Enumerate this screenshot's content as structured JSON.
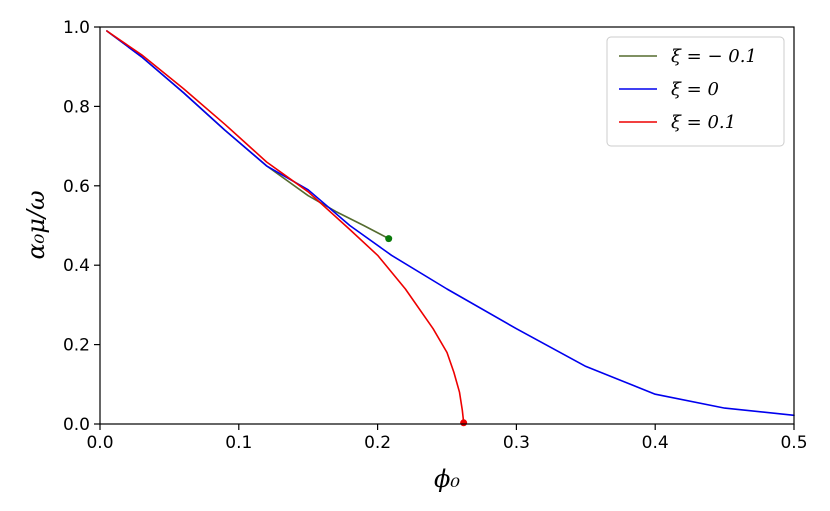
{
  "chart_data": {
    "type": "line",
    "xlabel": "ϕ₀",
    "ylabel": "α₀μ/ω",
    "xlim": [
      0.0,
      0.5
    ],
    "ylim": [
      0.0,
      1.0
    ],
    "x_ticks": [
      "0.0",
      "0.1",
      "0.2",
      "0.3",
      "0.4",
      "0.5"
    ],
    "y_ticks": [
      "0.0",
      "0.2",
      "0.4",
      "0.6",
      "0.8",
      "1.0"
    ],
    "grid": false,
    "legend_position": "top-right",
    "series": [
      {
        "name": "ξ = − 0.1",
        "color": "#556b2f",
        "endpoint_color": "#0a7a0a",
        "x": [
          0.005,
          0.03,
          0.06,
          0.09,
          0.12,
          0.15,
          0.17,
          0.19,
          0.208
        ],
        "y": [
          0.99,
          0.925,
          0.835,
          0.74,
          0.65,
          0.575,
          0.535,
          0.5,
          0.467
        ],
        "endpoint": [
          0.208,
          0.467
        ]
      },
      {
        "name": "ξ = 0",
        "color": "#0000ee",
        "x": [
          0.005,
          0.03,
          0.06,
          0.09,
          0.12,
          0.15,
          0.18,
          0.21,
          0.25,
          0.3,
          0.35,
          0.4,
          0.45,
          0.5
        ],
        "y": [
          0.99,
          0.925,
          0.835,
          0.74,
          0.65,
          0.59,
          0.5,
          0.425,
          0.34,
          0.24,
          0.145,
          0.075,
          0.04,
          0.022
        ]
      },
      {
        "name": "ξ = 0.1",
        "color": "#ee0000",
        "endpoint_color": "#ee0000",
        "x": [
          0.005,
          0.03,
          0.06,
          0.09,
          0.12,
          0.15,
          0.18,
          0.2,
          0.22,
          0.24,
          0.25,
          0.255,
          0.259,
          0.261,
          0.262
        ],
        "y": [
          0.99,
          0.93,
          0.845,
          0.755,
          0.66,
          0.585,
          0.49,
          0.425,
          0.34,
          0.24,
          0.18,
          0.13,
          0.08,
          0.035,
          0.003
        ],
        "endpoint": [
          0.262,
          0.003
        ]
      }
    ]
  }
}
